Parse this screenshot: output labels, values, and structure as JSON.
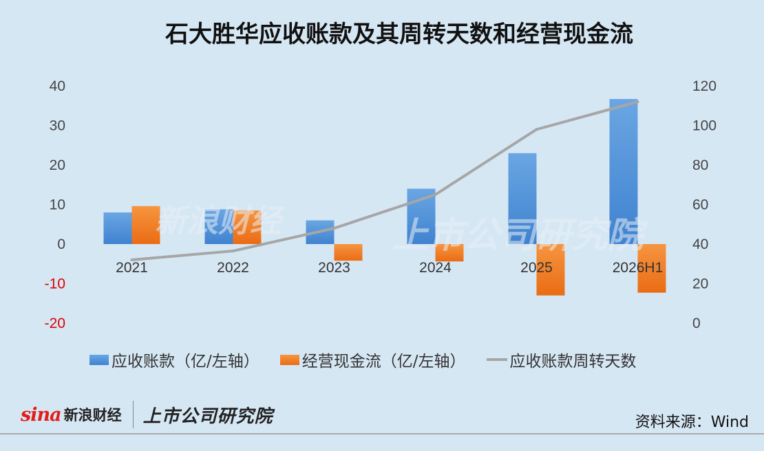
{
  "brand": {
    "sina_mark": "sina",
    "sina_name": "新浪财经",
    "institute": "上市公司研究院",
    "colors": {
      "sina_red": "#e31d1a"
    }
  },
  "source": "资料来源：Wind",
  "chart_data": {
    "type": "bar",
    "title": "石大胜华应收账款及其周转天数和经营现金流",
    "categories": [
      "2021",
      "2022",
      "2023",
      "2024",
      "2025",
      "2026H1"
    ],
    "series": [
      {
        "name": "应收账款（亿/左轴）",
        "type": "bar",
        "axis": "left",
        "color": "#4d8fd8",
        "values": [
          8,
          8.8,
          6,
          14,
          23,
          36.7
        ]
      },
      {
        "name": "经营现金流（亿/左轴）",
        "type": "bar",
        "axis": "left",
        "color": "#f07d22",
        "values": [
          9.6,
          8.5,
          -4.2,
          -4.4,
          -13,
          -12.3
        ]
      },
      {
        "name": "应收账款周转天数",
        "type": "line",
        "axis": "right",
        "color": "#a6a6a6",
        "values": [
          32,
          36.5,
          48,
          65,
          98,
          112
        ]
      }
    ],
    "left_axis": {
      "ylim": [
        -20,
        40
      ],
      "ticks": [
        "40",
        "30",
        "20",
        "10",
        "0",
        "-10",
        "-20"
      ]
    },
    "right_axis": {
      "ylim": [
        0,
        120
      ],
      "ticks": [
        "120",
        "100",
        "80",
        "60",
        "40",
        "20",
        "0"
      ]
    },
    "grid": false,
    "legend_position": "bottom"
  }
}
